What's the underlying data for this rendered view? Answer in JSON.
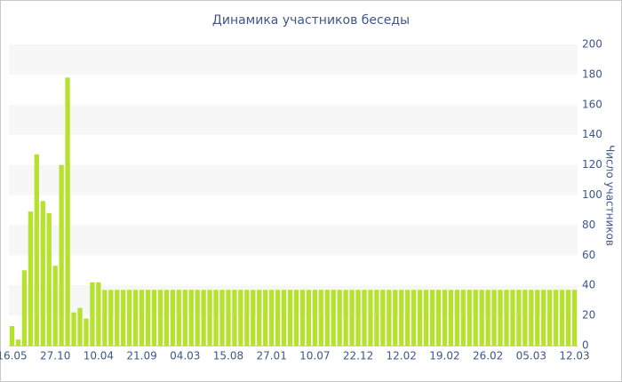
{
  "chart_data": {
    "type": "bar",
    "title": "Динамика участников беседы",
    "y_axis_label": "Число участников",
    "categories": [
      "16.05",
      null,
      null,
      null,
      null,
      null,
      null,
      "27.10",
      null,
      null,
      null,
      null,
      null,
      null,
      "10.04",
      null,
      null,
      null,
      null,
      null,
      null,
      "21.09",
      null,
      null,
      null,
      null,
      null,
      null,
      "04.03",
      null,
      null,
      null,
      null,
      null,
      null,
      "15.08",
      null,
      null,
      null,
      null,
      null,
      null,
      "27.01",
      null,
      null,
      null,
      null,
      null,
      null,
      "10.07",
      null,
      null,
      null,
      null,
      null,
      null,
      "22.12",
      null,
      null,
      null,
      null,
      null,
      null,
      "12.02",
      null,
      null,
      null,
      null,
      null,
      null,
      "19.02",
      null,
      null,
      null,
      null,
      null,
      null,
      "26.02",
      null,
      null,
      null,
      null,
      null,
      null,
      "05.03",
      null,
      null,
      null,
      null,
      null,
      null,
      "12.03"
    ],
    "values": [
      13,
      4,
      50,
      89,
      127,
      96,
      88,
      53,
      120,
      178,
      22,
      25,
      18,
      42,
      42,
      37,
      37,
      37,
      37,
      37,
      37,
      37,
      37,
      37,
      37,
      37,
      37,
      37,
      37,
      37,
      37,
      37,
      37,
      37,
      37,
      37,
      37,
      37,
      37,
      37,
      37,
      37,
      37,
      37,
      37,
      37,
      37,
      37,
      37,
      37,
      37,
      37,
      37,
      37,
      37,
      37,
      37,
      37,
      37,
      37,
      37,
      37,
      37,
      37,
      37,
      37,
      37,
      37,
      37,
      37,
      37,
      37,
      37,
      37,
      37,
      37,
      37,
      37,
      37,
      37,
      37,
      37,
      37,
      37,
      37,
      37,
      37,
      37,
      37,
      37,
      37,
      37
    ],
    "color": "#b6e12d",
    "ylim": [
      0,
      200
    ],
    "yticks": [
      0,
      20,
      40,
      60,
      80,
      100,
      120,
      140,
      160,
      180,
      200
    ],
    "grid": "bands"
  }
}
